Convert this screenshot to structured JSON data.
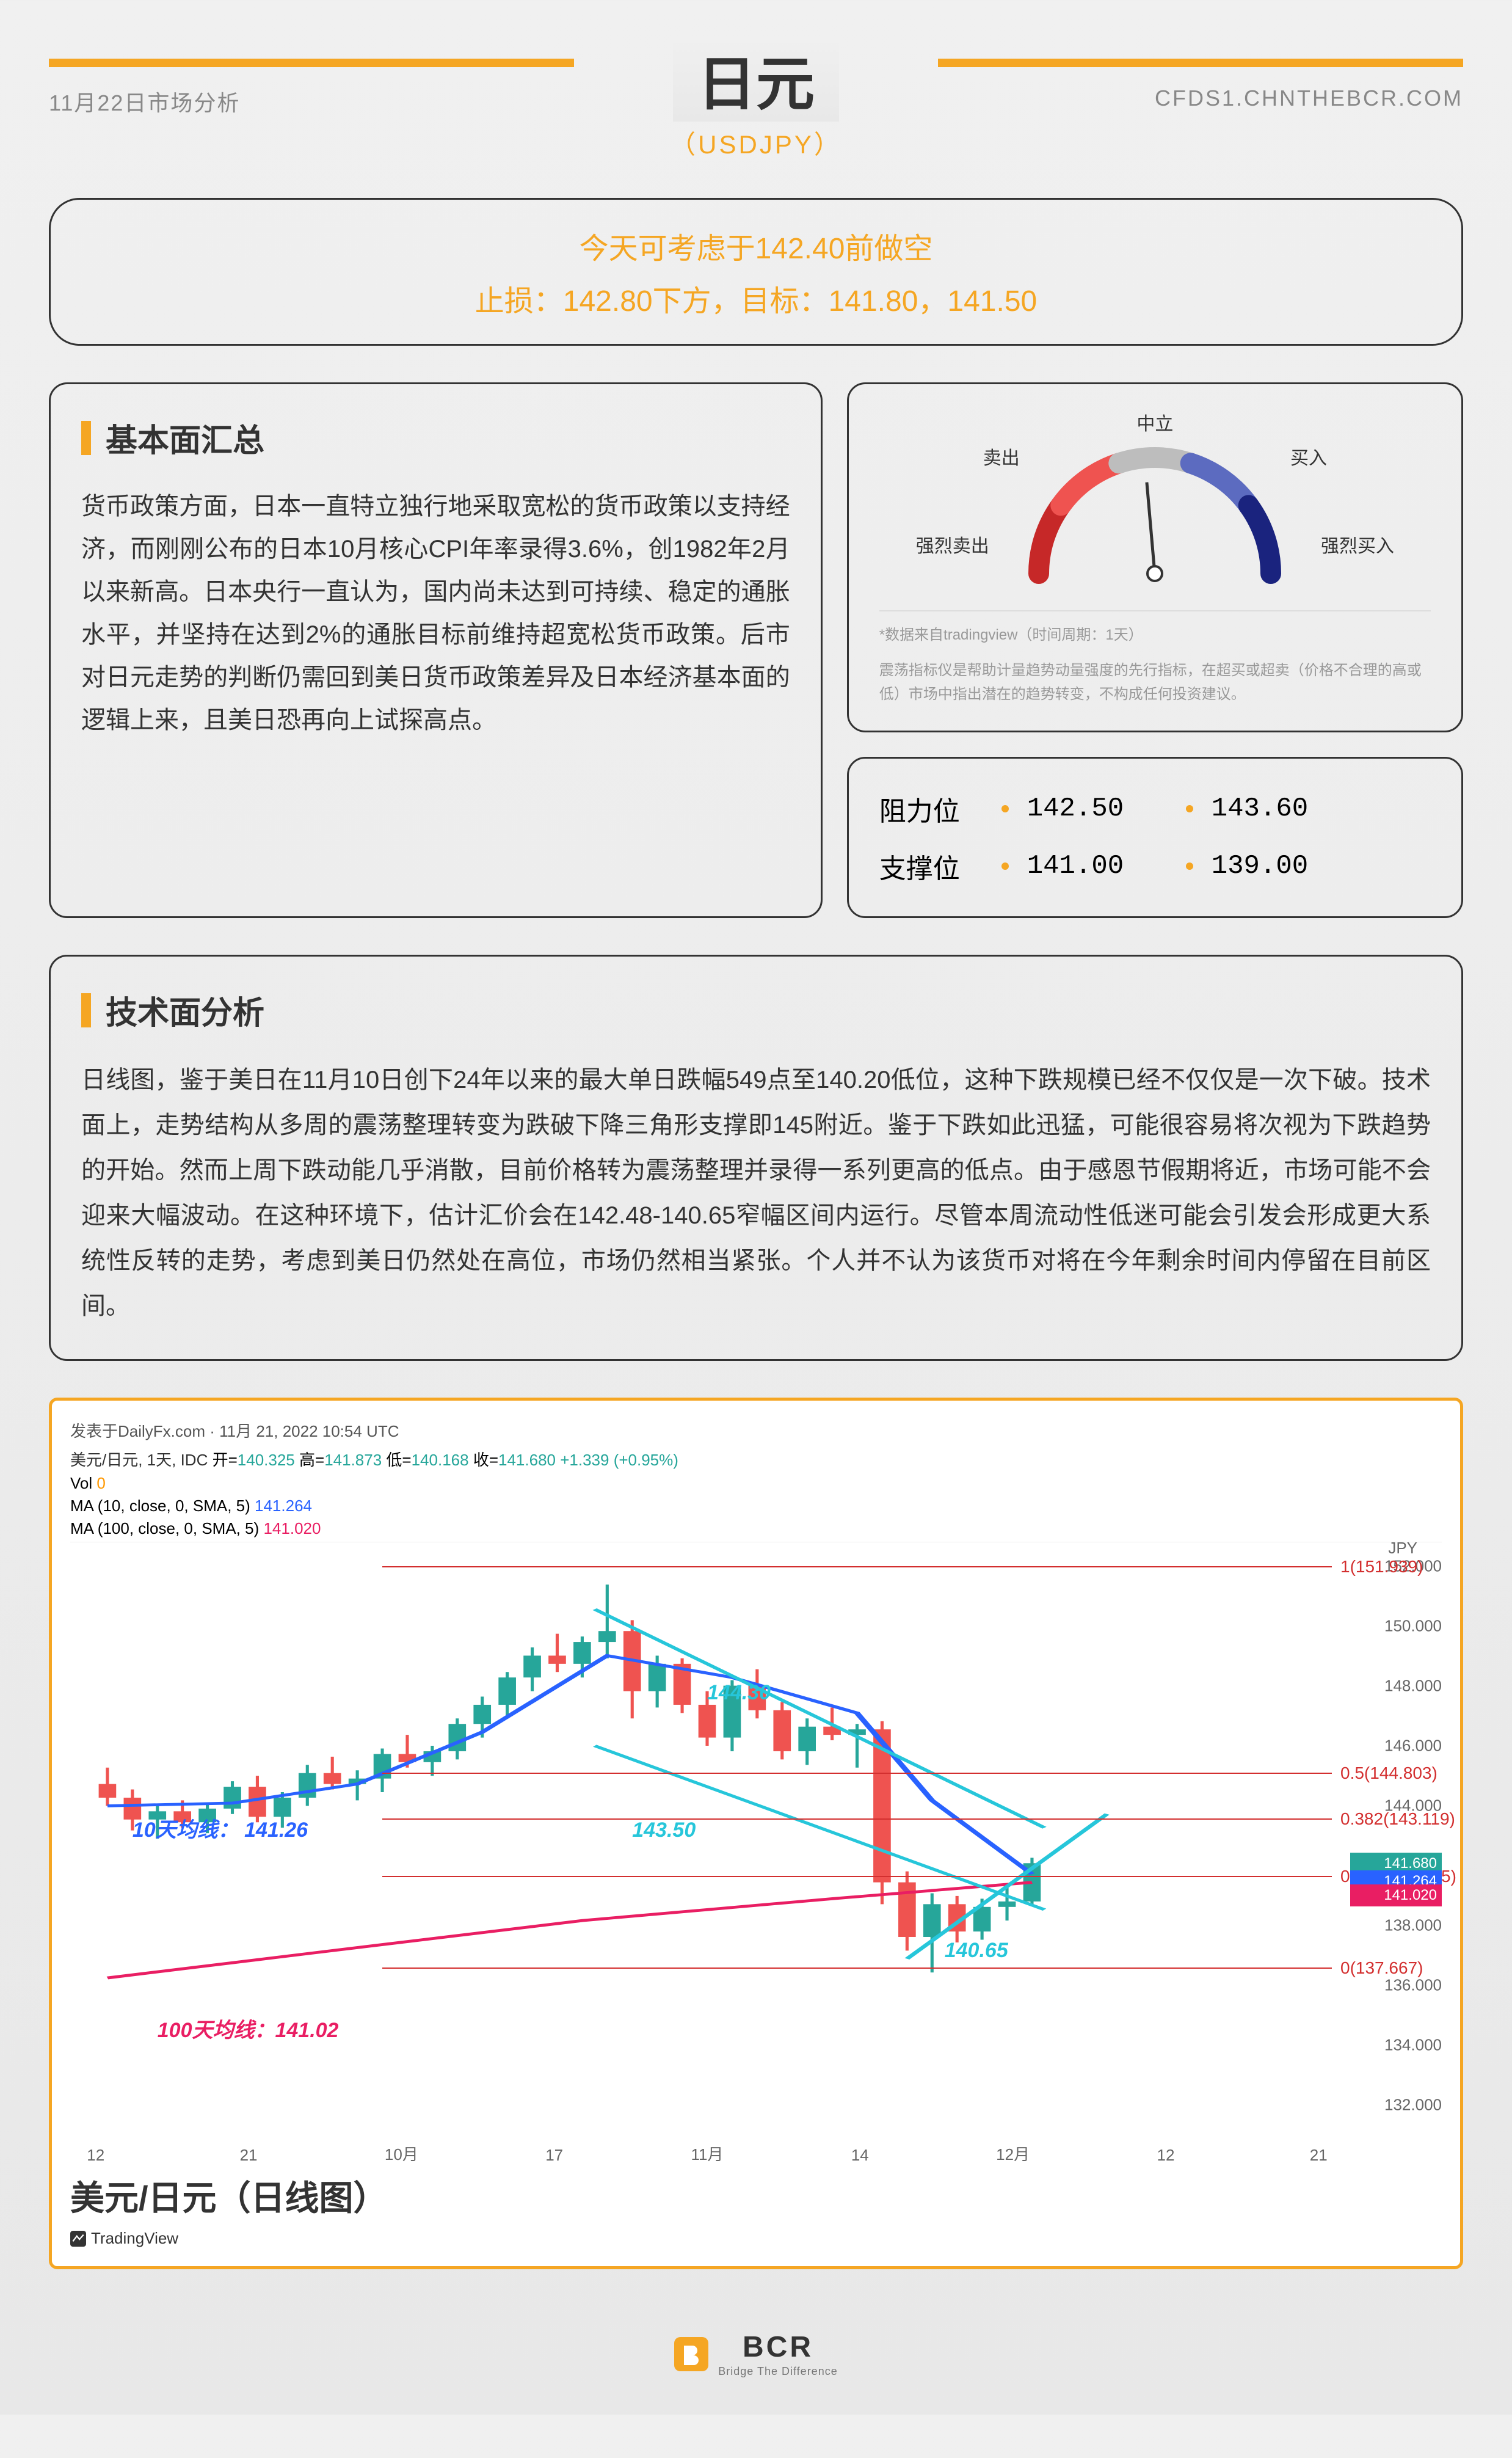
{
  "header": {
    "date": "11月22日市场分析",
    "website": "CFDS1.CHNTHEBCR.COM",
    "title": "日元",
    "subtitle": "（USDJPY）"
  },
  "callout": {
    "line1": "今天可考虑于142.40前做空",
    "line2": "止损：142.80下方，目标：141.80，141.50"
  },
  "fundamentals": {
    "title": "基本面汇总",
    "body": "货币政策方面，日本一直特立独行地采取宽松的货币政策以支持经济，而刚刚公布的日本10月核心CPI年率录得3.6%，创1982年2月以来新高。日本央行一直认为，国内尚未达到可持续、稳定的通胀水平，并坚持在达到2%的通胀目标前维持超宽松货币政策。后市对日元走势的判断仍需回到美日货币政策差异及日本经济基本面的逻辑上来，且美日恐再向上试探高点。"
  },
  "gauge": {
    "labels": {
      "top": "中立",
      "sell": "卖出",
      "buy": "买入",
      "strong_sell": "强烈卖出",
      "strong_buy": "强烈买入"
    },
    "note1": "*数据来自tradingview（时间周期：1天）",
    "note2": "震荡指标仪是帮助计量趋势动量强度的先行指标，在超买或超卖（价格不合理的高或低）市场中指出潜在的趋势转变，不构成任何投资建议。",
    "needle_angle": -5,
    "colors": {
      "sell_strong": "#c62828",
      "sell": "#ef5350",
      "neutral": "#bdbdbd",
      "buy": "#5c6bc0",
      "buy_strong": "#1a237e"
    }
  },
  "levels": {
    "resistance_label": "阻力位",
    "support_label": "支撑位",
    "resistance": [
      "142.50",
      "143.60"
    ],
    "support": [
      "141.00",
      "139.00"
    ]
  },
  "technical": {
    "title": "技术面分析",
    "body": "日线图，鉴于美日在11月10日创下24年以来的最大单日跌幅549点至140.20低位，这种下跌规模已经不仅仅是一次下破。技术面上，走势结构从多周的震荡整理转变为跌破下降三角形支撑即145附近。鉴于下跌如此迅猛，可能很容易将次视为下跌趋势的开始。然而上周下跌动能几乎消散，目前价格转为震荡整理并录得一系列更高的低点。由于感恩节假期将近，市场可能不会迎来大幅波动。在这种环境下，估计汇价会在142.48-140.65窄幅区间内运行。尽管本周流动性低迷可能会引发会形成更大系统性反转的走势，考虑到美日仍然处在高位，市场仍然相当紧张。个人并不认为该货币对将在今年剩余时间内停留在目前区间。"
  },
  "chart": {
    "source": "发表于DailyFx.com · 11月 21, 2022 10:54 UTC",
    "pair_info": "美元/日元, 1天, IDC",
    "ohlc": {
      "open_label": "开=",
      "open": "140.325",
      "high_label": "高=",
      "high": "141.873",
      "low_label": "低=",
      "low": "140.168",
      "close_label": "收=",
      "close": "141.680",
      "change": "+1.339 (+0.95%)"
    },
    "vol_label": "Vol",
    "vol_val": "0",
    "ma10_label": "MA (10, close, 0, SMA, 5)",
    "ma10_val": "141.264",
    "ma100_label": "MA (100, close, 0, SMA, 5)",
    "ma100_val": "141.020",
    "y_title": "JPY",
    "y_ticks": [
      "152.000",
      "150.000",
      "148.000",
      "146.000",
      "144.000",
      "142.000",
      "138.000",
      "136.000",
      "134.000",
      "132.000"
    ],
    "x_ticks": [
      "12",
      "21",
      "10月",
      "17",
      "11月",
      "14",
      "12月",
      "12",
      "21"
    ],
    "annotations": {
      "ma10_line": "10天均线：  141.26",
      "ma100_line": "100天均线：141.02",
      "t14430": "144.30",
      "t14350": "143.50",
      "t14065": "140.65"
    },
    "fib": [
      {
        "label": "1(151.939)",
        "pct": 2
      },
      {
        "label": "0.5(144.803)",
        "pct": 38
      },
      {
        "label": "0.382(143.119)",
        "pct": 46
      },
      {
        "label": "0.236(141.035)",
        "pct": 56
      },
      {
        "label": "0(137.667)",
        "pct": 72
      }
    ],
    "price_tags": [
      {
        "text": "141.680",
        "color": "#26a69a",
        "pct": 52
      },
      {
        "text": "141.264",
        "color": "#2962ff",
        "pct": 55
      },
      {
        "text": "141.020",
        "color": "#e91e63",
        "pct": 57.5
      }
    ],
    "title_cn": "美元/日元（日线图）",
    "tv_brand": "TradingView",
    "candles": [
      {
        "x": 2,
        "o": 144.6,
        "h": 145.2,
        "l": 143.8,
        "c": 144.1,
        "up": false
      },
      {
        "x": 4,
        "o": 144.1,
        "h": 144.4,
        "l": 142.9,
        "c": 143.3,
        "up": false
      },
      {
        "x": 6,
        "o": 143.3,
        "h": 143.8,
        "l": 142.6,
        "c": 143.6,
        "up": true
      },
      {
        "x": 8,
        "o": 143.6,
        "h": 144.0,
        "l": 143.0,
        "c": 143.2,
        "up": false
      },
      {
        "x": 10,
        "o": 143.2,
        "h": 143.9,
        "l": 142.8,
        "c": 143.7,
        "up": true
      },
      {
        "x": 12,
        "o": 143.7,
        "h": 144.7,
        "l": 143.5,
        "c": 144.5,
        "up": true
      },
      {
        "x": 14,
        "o": 144.5,
        "h": 144.9,
        "l": 143.2,
        "c": 143.4,
        "up": false
      },
      {
        "x": 16,
        "o": 143.4,
        "h": 144.3,
        "l": 143.0,
        "c": 144.1,
        "up": true
      },
      {
        "x": 18,
        "o": 144.1,
        "h": 145.3,
        "l": 143.8,
        "c": 145.0,
        "up": true
      },
      {
        "x": 20,
        "o": 145.0,
        "h": 145.6,
        "l": 144.4,
        "c": 144.6,
        "up": false
      },
      {
        "x": 22,
        "o": 144.6,
        "h": 145.1,
        "l": 144.0,
        "c": 144.8,
        "up": true
      },
      {
        "x": 24,
        "o": 144.8,
        "h": 145.9,
        "l": 144.3,
        "c": 145.7,
        "up": true
      },
      {
        "x": 26,
        "o": 145.7,
        "h": 146.4,
        "l": 145.2,
        "c": 145.4,
        "up": false
      },
      {
        "x": 28,
        "o": 145.4,
        "h": 146.0,
        "l": 144.9,
        "c": 145.8,
        "up": true
      },
      {
        "x": 30,
        "o": 145.8,
        "h": 147.0,
        "l": 145.5,
        "c": 146.8,
        "up": true
      },
      {
        "x": 32,
        "o": 146.8,
        "h": 147.8,
        "l": 146.3,
        "c": 147.5,
        "up": true
      },
      {
        "x": 34,
        "o": 147.5,
        "h": 148.7,
        "l": 147.0,
        "c": 148.5,
        "up": true
      },
      {
        "x": 36,
        "o": 148.5,
        "h": 149.6,
        "l": 148.0,
        "c": 149.3,
        "up": true
      },
      {
        "x": 38,
        "o": 149.3,
        "h": 150.1,
        "l": 148.7,
        "c": 149.0,
        "up": false
      },
      {
        "x": 40,
        "o": 149.0,
        "h": 150.0,
        "l": 148.5,
        "c": 149.8,
        "up": true
      },
      {
        "x": 42,
        "o": 149.8,
        "h": 151.9,
        "l": 149.2,
        "c": 150.2,
        "up": true
      },
      {
        "x": 44,
        "o": 150.2,
        "h": 150.6,
        "l": 147.0,
        "c": 148.0,
        "up": false
      },
      {
        "x": 46,
        "o": 148.0,
        "h": 149.3,
        "l": 147.4,
        "c": 149.0,
        "up": true
      },
      {
        "x": 48,
        "o": 149.0,
        "h": 149.2,
        "l": 147.2,
        "c": 147.5,
        "up": false
      },
      {
        "x": 50,
        "o": 147.5,
        "h": 148.0,
        "l": 146.0,
        "c": 146.3,
        "up": false
      },
      {
        "x": 52,
        "o": 146.3,
        "h": 148.4,
        "l": 145.8,
        "c": 148.2,
        "up": true
      },
      {
        "x": 54,
        "o": 148.2,
        "h": 148.8,
        "l": 147.0,
        "c": 147.3,
        "up": false
      },
      {
        "x": 56,
        "o": 147.3,
        "h": 147.6,
        "l": 145.5,
        "c": 145.8,
        "up": false
      },
      {
        "x": 58,
        "o": 145.8,
        "h": 147.0,
        "l": 145.3,
        "c": 146.7,
        "up": true
      },
      {
        "x": 60,
        "o": 146.7,
        "h": 147.4,
        "l": 146.2,
        "c": 146.4,
        "up": false
      },
      {
        "x": 62,
        "o": 146.4,
        "h": 146.8,
        "l": 145.2,
        "c": 146.6,
        "up": true
      },
      {
        "x": 64,
        "o": 146.6,
        "h": 146.9,
        "l": 140.2,
        "c": 141.0,
        "up": false
      },
      {
        "x": 66,
        "o": 141.0,
        "h": 141.4,
        "l": 138.5,
        "c": 139.0,
        "up": false
      },
      {
        "x": 68,
        "o": 139.0,
        "h": 140.6,
        "l": 137.7,
        "c": 140.2,
        "up": true
      },
      {
        "x": 70,
        "o": 140.2,
        "h": 140.5,
        "l": 138.8,
        "c": 139.2,
        "up": false
      },
      {
        "x": 72,
        "o": 139.2,
        "h": 140.4,
        "l": 138.9,
        "c": 140.1,
        "up": true
      },
      {
        "x": 74,
        "o": 140.1,
        "h": 140.8,
        "l": 139.6,
        "c": 140.3,
        "up": true
      },
      {
        "x": 76,
        "o": 140.3,
        "h": 141.9,
        "l": 140.2,
        "c": 141.7,
        "up": true
      }
    ],
    "chart_ymin": 132,
    "chart_ymax": 153,
    "ma10_path": [
      [
        2,
        143.8
      ],
      [
        12,
        143.9
      ],
      [
        22,
        144.6
      ],
      [
        32,
        146.5
      ],
      [
        42,
        149.3
      ],
      [
        52,
        148.5
      ],
      [
        62,
        147.2
      ],
      [
        68,
        144.0
      ],
      [
        76,
        141.3
      ]
    ],
    "ma100_path": [
      [
        2,
        137.5
      ],
      [
        20,
        138.5
      ],
      [
        40,
        139.6
      ],
      [
        60,
        140.4
      ],
      [
        76,
        141.0
      ]
    ],
    "triangle": [
      [
        41,
        151.0
      ],
      [
        77,
        143.0
      ],
      [
        77,
        140.0
      ],
      [
        41,
        146.0
      ]
    ],
    "uptrend": [
      [
        66,
        138.2
      ],
      [
        82,
        143.5
      ]
    ]
  },
  "footer": {
    "brand": "BCR",
    "tagline": "Bridge The Difference"
  }
}
